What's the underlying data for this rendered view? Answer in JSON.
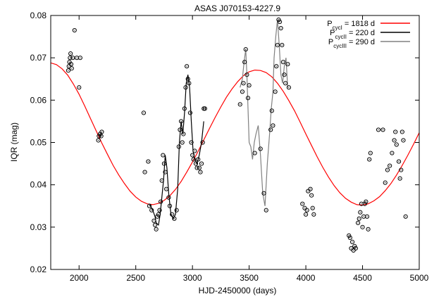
{
  "chart_data": {
    "type": "scatter",
    "title": "ASAS J070153-4227.9",
    "xlabel": "HJD-2450000 (days)",
    "ylabel": "IQR (mag)",
    "xlim": [
      1750,
      5000
    ],
    "ylim": [
      0.02,
      0.08
    ],
    "xticks": [
      2000,
      2500,
      3000,
      3500,
      4000,
      4500,
      5000
    ],
    "yticks": [
      0.02,
      0.03,
      0.04,
      0.05,
      0.06,
      0.07,
      0.08
    ],
    "xtick_labels": [
      "2000",
      "2500",
      "3000",
      "3500",
      "4000",
      "4500",
      "5000"
    ],
    "ytick_labels": [
      "0.02",
      "0.03",
      "0.04",
      "0.05",
      "0.06",
      "0.07",
      "0.08"
    ],
    "grid": false,
    "legend_position": "top-right",
    "legend": [
      {
        "base": "P",
        "sub": "cycI",
        "rest": " = 1818 d",
        "color": "#ff0000"
      },
      {
        "base": "P",
        "sub": "cycII",
        "rest": " = 220 d",
        "color": "#000000"
      },
      {
        "base": "P",
        "sub": "cycIII",
        "rest": " = 290 d",
        "color": "#808080"
      }
    ],
    "series": [
      {
        "type": "line",
        "color": "#ff0000",
        "x": [
          1750,
          1800,
          1850,
          1900,
          1950,
          2000,
          2050,
          2100,
          2150,
          2200,
          2250,
          2300,
          2350,
          2400,
          2450,
          2500,
          2550,
          2600,
          2650,
          2700,
          2750,
          2800,
          2850,
          2900,
          2950,
          3000,
          3050,
          3100,
          3150,
          3200,
          3250,
          3300,
          3350,
          3400,
          3450,
          3500,
          3550,
          3600,
          3650,
          3700,
          3750,
          3800,
          3850,
          3900,
          3950,
          4000,
          4050,
          4100,
          4150,
          4200,
          4250,
          4300,
          4350,
          4400,
          4450,
          4500,
          4550,
          4600,
          4650,
          4700,
          4750,
          4800,
          4850,
          4900,
          4950,
          5000
        ],
        "values": [
          0.0688,
          0.0684,
          0.0674,
          0.0659,
          0.0638,
          0.0614,
          0.0586,
          0.0557,
          0.0528,
          0.0499,
          0.0472,
          0.0446,
          0.0423,
          0.0403,
          0.0385,
          0.0371,
          0.0361,
          0.0355,
          0.0353,
          0.0356,
          0.0363,
          0.0374,
          0.0389,
          0.0408,
          0.043,
          0.0454,
          0.0479,
          0.0506,
          0.0533,
          0.0559,
          0.0584,
          0.0607,
          0.0627,
          0.0644,
          0.0658,
          0.0667,
          0.0671,
          0.067,
          0.0665,
          0.0655,
          0.064,
          0.0621,
          0.0599,
          0.0575,
          0.0548,
          0.052,
          0.0493,
          0.0466,
          0.0441,
          0.0418,
          0.0398,
          0.0381,
          0.0368,
          0.0359,
          0.0353,
          0.0352,
          0.0355,
          0.0362,
          0.0372,
          0.0386,
          0.0403,
          0.0423,
          0.0446,
          0.047,
          0.0496,
          0.0523
        ]
      },
      {
        "type": "line",
        "color": "#000000",
        "x": [
          2620,
          2650,
          2670,
          2680,
          2700,
          2715,
          2730,
          2745,
          2760,
          2775,
          2790,
          2810,
          2830,
          2850,
          2870,
          2885,
          2900,
          2915,
          2930,
          2945,
          2960,
          2975,
          2990,
          3005,
          3020,
          3040,
          3060,
          3080,
          3100
        ],
        "values": [
          0.0355,
          0.034,
          0.0325,
          0.031,
          0.0305,
          0.033,
          0.037,
          0.041,
          0.047,
          0.044,
          0.038,
          0.033,
          0.032,
          0.033,
          0.039,
          0.05,
          0.055,
          0.052,
          0.057,
          0.064,
          0.066,
          0.063,
          0.055,
          0.048,
          0.046,
          0.045,
          0.047,
          0.05,
          0.055
        ]
      },
      {
        "type": "line",
        "color": "#808080",
        "x": [
          3420,
          3440,
          3455,
          3470,
          3480,
          3490,
          3500,
          3515,
          3530,
          3545,
          3560,
          3580,
          3600,
          3620,
          3640,
          3660,
          3680,
          3695,
          3710,
          3720,
          3735,
          3750,
          3765,
          3780,
          3795,
          3810,
          3825,
          3840
        ],
        "values": [
          0.063,
          0.065,
          0.069,
          0.072,
          0.066,
          0.058,
          0.05,
          0.049,
          0.046,
          0.05,
          0.052,
          0.054,
          0.047,
          0.038,
          0.035,
          0.045,
          0.052,
          0.058,
          0.062,
          0.07,
          0.075,
          0.079,
          0.073,
          0.066,
          0.064,
          0.068,
          0.07,
          0.063
        ]
      },
      {
        "type": "scatter",
        "color": "#000000",
        "x": [
          1905,
          1910,
          1915,
          1920,
          1925,
          1930,
          1935,
          1945,
          1960,
          1980,
          2000,
          2010,
          2170,
          2175,
          2185,
          2195,
          2200,
          2570,
          2580,
          2610,
          2620,
          2640,
          2660,
          2670,
          2680,
          2690,
          2700,
          2710,
          2720,
          2730,
          2740,
          2750,
          2760,
          2770,
          2790,
          2800,
          2820,
          2840,
          2860,
          2880,
          2890,
          2900,
          2910,
          2920,
          2930,
          2940,
          2950,
          2960,
          2970,
          2980,
          2990,
          3000,
          3010,
          3020,
          3030,
          3040,
          3050,
          3060,
          3070,
          3080,
          3090,
          3100,
          3110,
          3420,
          3440,
          3450,
          3460,
          3470,
          3480,
          3490,
          3500,
          3550,
          3600,
          3630,
          3650,
          3690,
          3700,
          3710,
          3730,
          3740,
          3750,
          3760,
          3770,
          3780,
          3790,
          3800,
          3810,
          3820,
          3840,
          3850,
          3970,
          3990,
          4000,
          4010,
          4020,
          4040,
          4050,
          4060,
          4070,
          4380,
          4390,
          4400,
          4410,
          4420,
          4430,
          4440,
          4460,
          4470,
          4480,
          4490,
          4500,
          4510,
          4520,
          4530,
          4540,
          4550,
          4560,
          4570,
          4640,
          4680,
          4700,
          4720,
          4740,
          4760,
          4780,
          4790,
          4800,
          4820,
          4830,
          4840,
          4850,
          4860,
          4880
        ],
        "values": [
          0.067,
          0.068,
          0.069,
          0.07,
          0.071,
          0.0685,
          0.0675,
          0.07,
          0.0765,
          0.07,
          0.063,
          0.07,
          0.0505,
          0.0515,
          0.052,
          0.0515,
          0.0525,
          0.057,
          0.043,
          0.0455,
          0.035,
          0.034,
          0.0315,
          0.0305,
          0.0295,
          0.0325,
          0.033,
          0.034,
          0.036,
          0.041,
          0.047,
          0.045,
          0.043,
          0.039,
          0.037,
          0.035,
          0.033,
          0.032,
          0.034,
          0.049,
          0.053,
          0.055,
          0.05,
          0.052,
          0.058,
          0.063,
          0.068,
          0.065,
          0.064,
          0.057,
          0.05,
          0.047,
          0.046,
          0.048,
          0.045,
          0.044,
          0.046,
          0.044,
          0.043,
          0.045,
          0.05,
          0.058,
          0.058,
          0.059,
          0.062,
          0.064,
          0.069,
          0.072,
          0.066,
          0.0605,
          0.0635,
          0.0475,
          0.0485,
          0.038,
          0.034,
          0.053,
          0.0575,
          0.054,
          0.062,
          0.068,
          0.073,
          0.079,
          0.0785,
          0.077,
          0.073,
          0.069,
          0.066,
          0.064,
          0.0685,
          0.063,
          0.0355,
          0.0345,
          0.033,
          0.034,
          0.0385,
          0.039,
          0.0375,
          0.0345,
          0.033,
          0.028,
          0.0275,
          0.025,
          0.0265,
          0.0245,
          0.0255,
          0.025,
          0.031,
          0.032,
          0.0335,
          0.0355,
          0.03,
          0.0325,
          0.0355,
          0.036,
          0.0325,
          0.0295,
          0.046,
          0.0475,
          0.053,
          0.053,
          0.0405,
          0.0435,
          0.0445,
          0.0475,
          0.0505,
          0.0525,
          0.0495,
          0.0455,
          0.0415,
          0.0435,
          0.0525,
          0.0505,
          0.0325
        ]
      }
    ]
  }
}
